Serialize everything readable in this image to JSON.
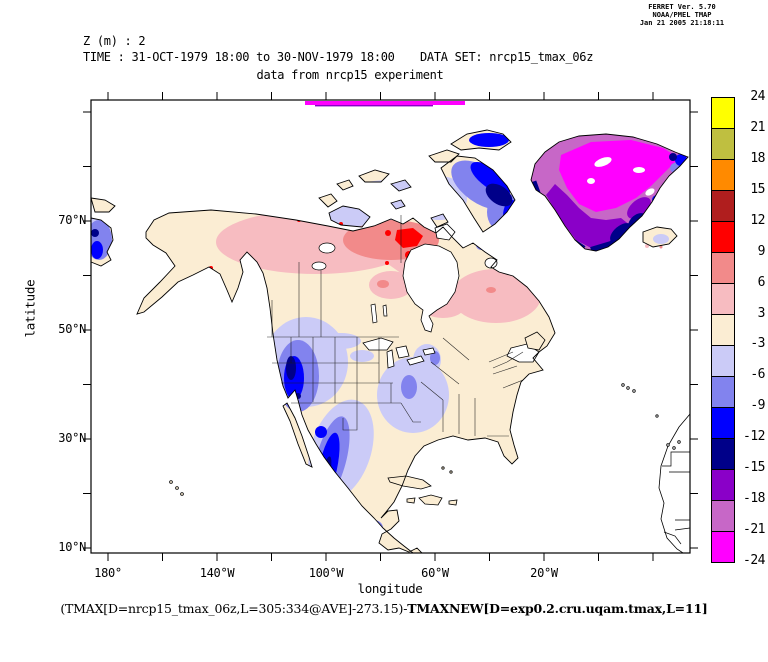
{
  "credit": {
    "line1": "FERRET Ver. 5.70",
    "line2": "NOAA/PMEL TMAP",
    "line3": "Jan 21 2005 21:18:11"
  },
  "header": {
    "z_label": "Z (m) : 2",
    "time_label": "TIME : 31-OCT-1979 18:00 to 30-NOV-1979 18:00",
    "dataset_label": "DATA SET: nrcp15_tmax_06z",
    "subtitle": "data from nrcp15 experiment"
  },
  "axes": {
    "x_title": "longitude",
    "y_title": "latitude",
    "lon_labels": [
      "180°",
      "140°W",
      "100°W",
      "60°W",
      "20°W"
    ],
    "lat_labels": [
      "70°N",
      "50°N",
      "30°N",
      "10°N"
    ]
  },
  "colorbar": {
    "labels": [
      "24",
      "21",
      "18",
      "15",
      "12",
      "9",
      "6",
      "3",
      "-3",
      "-6",
      "-9",
      "-12",
      "-15",
      "-18",
      "-21",
      "-24"
    ],
    "segments": [
      {
        "range": "21 to 24",
        "color": "#FFFF00"
      },
      {
        "range": "18 to 21",
        "color": "#BFBF40"
      },
      {
        "range": "15 to 18",
        "color": "#FF8A00"
      },
      {
        "range": "12 to 15",
        "color": "#B01E1E"
      },
      {
        "range": "9 to 12",
        "color": "#FF0000"
      },
      {
        "range": "6 to 9",
        "color": "#F28A8A"
      },
      {
        "range": "3 to 6",
        "color": "#F7BCC1"
      },
      {
        "range": "-3 to 3",
        "color": "#FBEDD3"
      },
      {
        "range": "-6 to -3",
        "color": "#CBCBF7"
      },
      {
        "range": "-9 to -6",
        "color": "#8283EE"
      },
      {
        "range": "-12 to -9",
        "color": "#0000FF"
      },
      {
        "range": "-15 to -12",
        "color": "#000089"
      },
      {
        "range": "-18 to -15",
        "color": "#8A00C8"
      },
      {
        "range": "-21 to -18",
        "color": "#C767C7"
      },
      {
        "range": "-24 to -21",
        "color": "#FF00FF"
      }
    ]
  },
  "caption": {
    "part1": "(TMAX[D=nrcp15_tmax_06z,L=305:334@AVE]-273.15)-",
    "part2": "TMAXNEW[D=exp0.2.cru.uqam.tmax,L=11]"
  },
  "chart_data": {
    "type": "heatmap",
    "subtype": "filled-contour geographic map of North America",
    "title": "data from nrcp15 experiment",
    "xlabel": "longitude",
    "ylabel": "latitude",
    "x_tick_labels": [
      "180°",
      "140°W",
      "100°W",
      "60°W",
      "20°W"
    ],
    "y_tick_labels": [
      "70°N",
      "50°N",
      "30°N",
      "10°N"
    ],
    "x_tick_step_deg": 20,
    "y_tick_step_deg": 10,
    "colorbar_boundaries": [
      24,
      21,
      18,
      15,
      12,
      9,
      6,
      3,
      -3,
      -6,
      -9,
      -12,
      -15,
      -18,
      -21,
      -24
    ],
    "colorbar_colors_top_to_bottom": [
      "#FFFF00",
      "#BFBF40",
      "#FF8A00",
      "#B01E1E",
      "#FF0000",
      "#F28A8A",
      "#F7BCC1",
      "#FBEDD3",
      "#CBCBF7",
      "#8283EE",
      "#0000FF",
      "#000089",
      "#8A00C8",
      "#C767C7",
      "#FF00FF"
    ],
    "regions_approx_values": [
      {
        "region": "Greenland interior",
        "value_range": [
          -24,
          -15
        ]
      },
      {
        "region": "Greenland coasts",
        "value_range": [
          -15,
          -9
        ]
      },
      {
        "region": "Canadian Arctic Archipelago / Baffin",
        "value_range": [
          -15,
          -3
        ]
      },
      {
        "region": "Alaska interior and Yukon hotspot",
        "value_range": [
          3,
          12
        ]
      },
      {
        "region": "central Canada / Quebec band",
        "value_range": [
          3,
          6
        ]
      },
      {
        "region": "western US, Great Basin, Mexican cordillera",
        "value_range": [
          -15,
          -3
        ]
      },
      {
        "region": "southeastern US",
        "value_range": [
          -6,
          -3
        ]
      },
      {
        "region": "most of central/eastern North America",
        "value_range": [
          -3,
          3
        ]
      }
    ]
  }
}
